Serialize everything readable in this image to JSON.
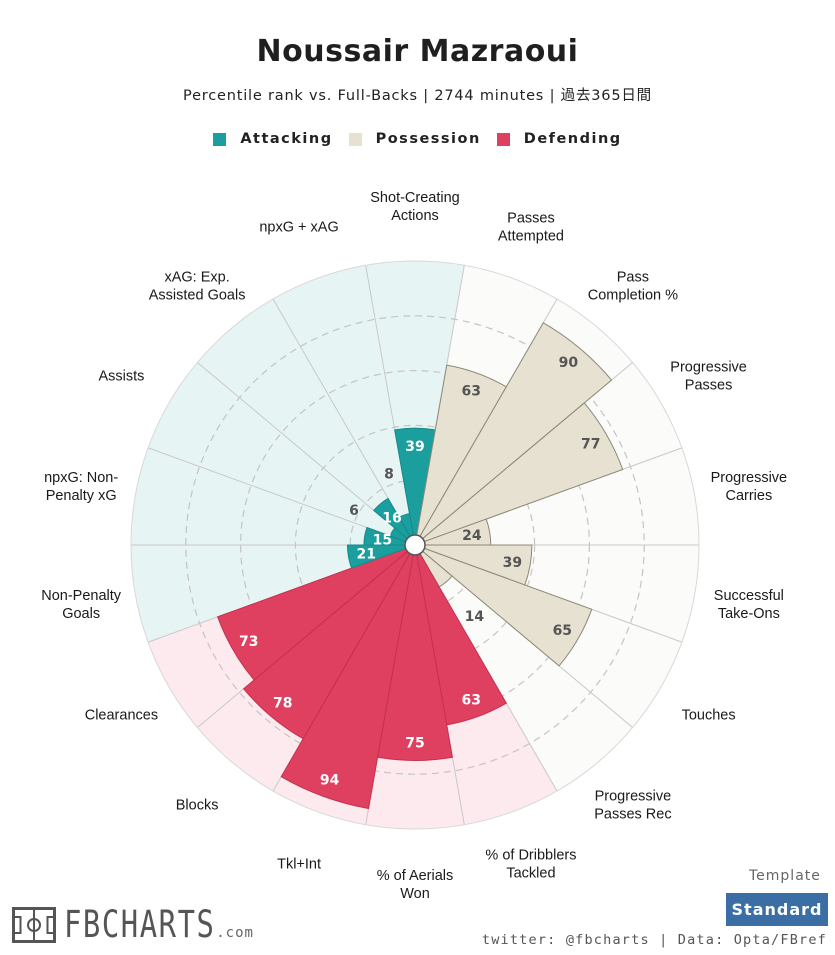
{
  "title": "Noussair Mazraoui",
  "subtitle": "Percentile rank vs. Full-Backs | 2744 minutes | 過去365日間",
  "legend": [
    {
      "label": "Attacking",
      "color": "#1a9e9e"
    },
    {
      "label": "Possession",
      "color": "#e6e1d1"
    },
    {
      "label": "Defending",
      "color": "#e0405f"
    }
  ],
  "chart_data": {
    "type": "polar-bar",
    "title": "Noussair Mazraoui",
    "rmax": 100,
    "gridlines": [
      20,
      40,
      60,
      80
    ],
    "categories": [
      {
        "label": "Shot-Creating\nActions",
        "value": 39,
        "group": "Attacking"
      },
      {
        "label": "Passes\nAttempted",
        "value": 63,
        "group": "Possession"
      },
      {
        "label": "Pass\nCompletion %",
        "value": 90,
        "group": "Possession"
      },
      {
        "label": "Progressive\nPasses",
        "value": 77,
        "group": "Possession"
      },
      {
        "label": "Progressive\nCarries",
        "value": 24,
        "group": "Possession"
      },
      {
        "label": "Successful\nTake-Ons",
        "value": 39,
        "group": "Possession"
      },
      {
        "label": "Touches",
        "value": 65,
        "group": "Possession"
      },
      {
        "label": "Progressive\nPasses Rec",
        "value": 14,
        "group": "Possession"
      },
      {
        "label": "% of Dribblers\nTackled",
        "value": 63,
        "group": "Defending"
      },
      {
        "label": "% of Aerials\nWon",
        "value": 75,
        "group": "Defending"
      },
      {
        "label": "Tkl+Int",
        "value": 94,
        "group": "Defending"
      },
      {
        "label": "Blocks",
        "value": 78,
        "group": "Defending"
      },
      {
        "label": "Clearances",
        "value": 73,
        "group": "Defending"
      },
      {
        "label": "Non-Penalty\nGoals",
        "value": 21,
        "group": "Attacking"
      },
      {
        "label": "npxG: Non-\nPenalty xG",
        "value": 15,
        "group": "Attacking"
      },
      {
        "label": "Assists",
        "value": 6,
        "group": "Attacking"
      },
      {
        "label": "xAG: Exp.\nAssisted Goals",
        "value": 16,
        "group": "Attacking"
      },
      {
        "label": "npxG + xAG",
        "value": 8,
        "group": "Attacking"
      }
    ]
  },
  "footer": {
    "logo": "FBCHARTS",
    "logo_suffix": ".com",
    "template_label": "Template",
    "template_button": "Standard",
    "credit": "twitter: @fbcharts | Data: Opta/FBref"
  }
}
